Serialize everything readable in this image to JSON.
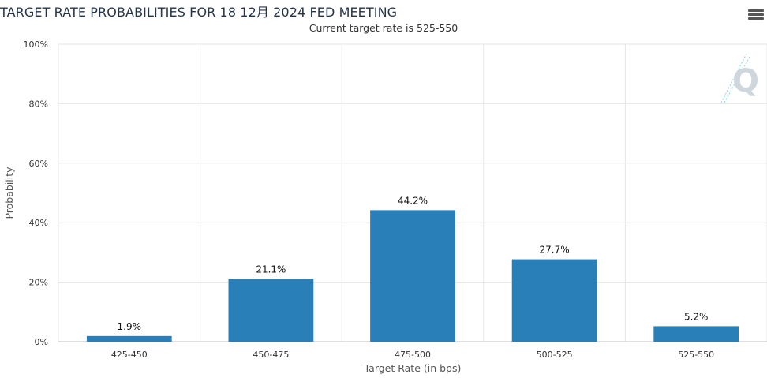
{
  "title": "TARGET RATE PROBABILITIES FOR 18 12月 2024 FED MEETING",
  "subtitle": "Current target rate is 525-550",
  "menu_icon": "hamburger-menu-icon",
  "logo_icon": "quikstrike-q-logo-icon",
  "colors": {
    "bar": "#2980b9",
    "grid": "#e6e6e6",
    "axis": "#c0c0c0",
    "text": "#333333"
  },
  "chart_data": {
    "type": "bar",
    "title": "TARGET RATE PROBABILITIES FOR 18 12月 2024 FED MEETING",
    "subtitle": "Current target rate is 525-550",
    "xlabel": "Target Rate (in bps)",
    "ylabel": "Probability",
    "categories": [
      "425-450",
      "450-475",
      "475-500",
      "500-525",
      "525-550"
    ],
    "values": [
      1.9,
      21.1,
      44.2,
      27.7,
      5.2
    ],
    "data_labels": [
      "1.9%",
      "21.1%",
      "44.2%",
      "27.7%",
      "5.2%"
    ],
    "ylim": [
      0,
      100
    ],
    "yticks": [
      "0%",
      "20%",
      "40%",
      "60%",
      "80%",
      "100%"
    ],
    "grid": true,
    "legend": "none"
  }
}
